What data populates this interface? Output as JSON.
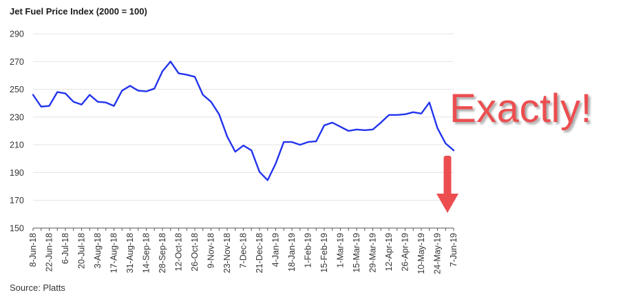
{
  "chart_data": {
    "type": "line",
    "title": "Jet Fuel Price Index (2000 = 100)",
    "source": "Source: Platts",
    "ylim": [
      150,
      290
    ],
    "yticks": [
      150,
      170,
      190,
      210,
      230,
      250,
      270,
      290
    ],
    "grid": true,
    "line_color": "#2233ee",
    "x": [
      "8-Jun-18",
      "15-Jun-18",
      "22-Jun-18",
      "29-Jun-18",
      "6-Jul-18",
      "13-Jul-18",
      "20-Jul-18",
      "27-Jul-18",
      "3-Aug-18",
      "10-Aug-18",
      "17-Aug-18",
      "24-Aug-18",
      "31-Aug-18",
      "7-Sep-18",
      "14-Sep-18",
      "21-Sep-18",
      "28-Sep-18",
      "5-Oct-18",
      "12-Oct-18",
      "19-Oct-18",
      "26-Oct-18",
      "2-Nov-18",
      "9-Nov-18",
      "16-Nov-18",
      "23-Nov-18",
      "30-Nov-18",
      "7-Dec-18",
      "14-Dec-18",
      "21-Dec-18",
      "28-Dec-18",
      "4-Jan-19",
      "11-Jan-19",
      "18-Jan-19",
      "25-Jan-19",
      "1-Feb-19",
      "8-Feb-19",
      "15-Feb-19",
      "22-Feb-19",
      "1-Mar-19",
      "8-Mar-19",
      "15-Mar-19",
      "22-Mar-19",
      "29-Mar-19",
      "5-Apr-19",
      "12-Apr-19",
      "19-Apr-19",
      "26-Apr-19",
      "3-May-19",
      "10-May-19",
      "17-May-19",
      "24-May-19",
      "31-May-19",
      "7-Jun-19"
    ],
    "xticks": [
      "8-Jun-18",
      "22-Jun-18",
      "6-Jul-18",
      "20-Jul-18",
      "3-Aug-18",
      "17-Aug-18",
      "31-Aug-18",
      "14-Sep-18",
      "28-Sep-18",
      "12-Oct-18",
      "26-Oct-18",
      "9-Nov-18",
      "23-Nov-18",
      "7-Dec-18",
      "21-Dec-18",
      "4-Jan-19",
      "18-Jan-19",
      "1-Feb-19",
      "15-Feb-19",
      "1-Mar-19",
      "15-Mar-19",
      "29-Mar-19",
      "12-Apr-19",
      "26-Apr-19",
      "10-May-19",
      "24-May-19",
      "7-Jun-19"
    ],
    "series": [
      {
        "values": [
          246,
          237.5,
          238,
          248,
          247,
          241,
          239,
          246,
          241,
          240.5,
          238,
          249,
          252.5,
          249,
          248.5,
          250.5,
          263,
          270,
          261.5,
          260.5,
          259,
          246,
          241,
          232,
          216,
          205,
          209.5,
          206,
          190.5,
          184.5,
          196.5,
          212,
          212,
          210,
          212,
          212.5,
          224,
          226,
          223,
          220,
          221,
          220.5,
          221,
          226,
          231.5,
          231.5,
          232,
          233.5,
          232.5,
          240.5,
          222,
          211,
          206
        ]
      }
    ]
  },
  "annotation": {
    "text": "Exactly!",
    "color": "#ec4e50",
    "arrow": "down-arrow-icon"
  }
}
